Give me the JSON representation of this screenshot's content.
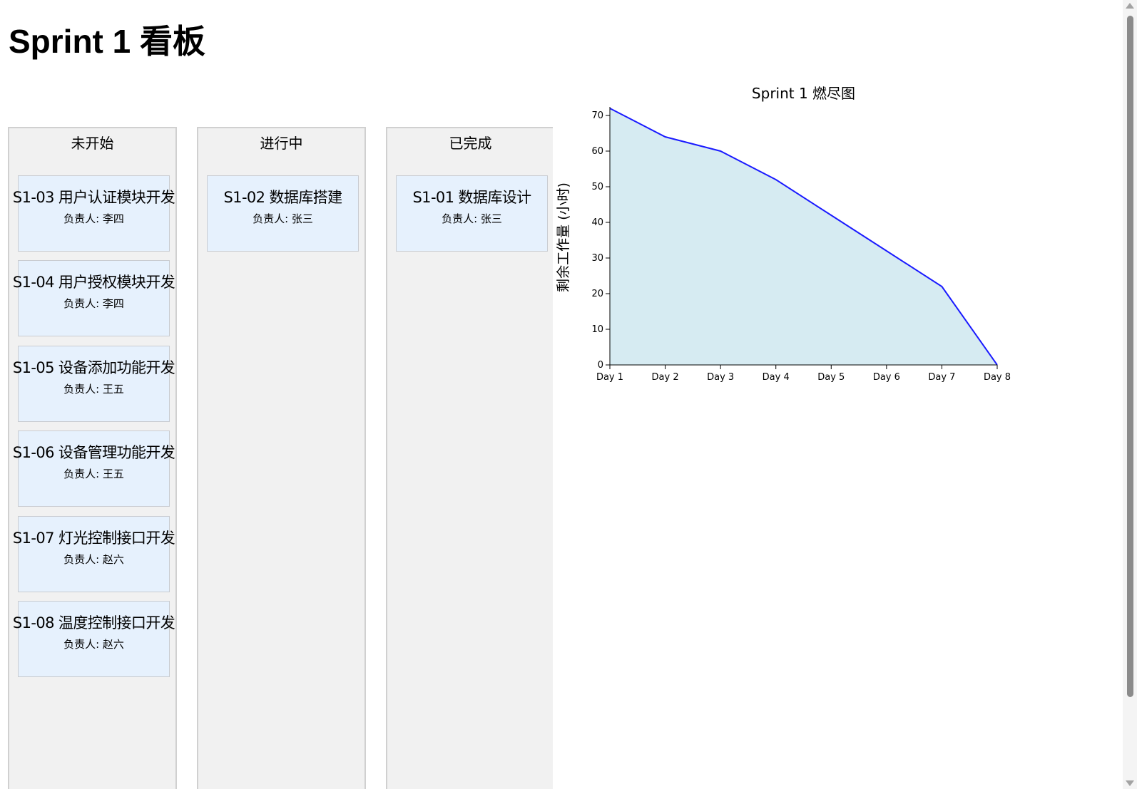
{
  "page": {
    "title": "Sprint 1 看板"
  },
  "board": {
    "columns": [
      {
        "title": "未开始",
        "cards": [
          {
            "title": "S1-03 用户认证模块开发",
            "owner": "负责人: 李四"
          },
          {
            "title": "S1-04 用户授权模块开发",
            "owner": "负责人: 李四"
          },
          {
            "title": "S1-05 设备添加功能开发",
            "owner": "负责人: 王五"
          },
          {
            "title": "S1-06 设备管理功能开发",
            "owner": "负责人: 王五"
          },
          {
            "title": "S1-07 灯光控制接口开发",
            "owner": "负责人: 赵六"
          },
          {
            "title": "S1-08 温度控制接口开发",
            "owner": "负责人: 赵六"
          }
        ]
      },
      {
        "title": "进行中",
        "cards": [
          {
            "title": "S1-02 数据库搭建",
            "owner": "负责人: 张三"
          }
        ]
      },
      {
        "title": "已完成",
        "cards": [
          {
            "title": "S1-01 数据库设计",
            "owner": "负责人: 张三"
          }
        ]
      }
    ]
  },
  "chart_data": {
    "type": "area",
    "title": "Sprint 1 燃尽图",
    "xlabel": "",
    "ylabel": "剩余工作量 (小时)",
    "categories": [
      "Day 1",
      "Day 2",
      "Day 3",
      "Day 4",
      "Day 5",
      "Day 6",
      "Day 7",
      "Day 8"
    ],
    "values": [
      72,
      64,
      60,
      52,
      42,
      32,
      22,
      0
    ],
    "ylim": [
      0,
      72
    ],
    "yticks": [
      0,
      10,
      20,
      30,
      40,
      50,
      60,
      70
    ],
    "grid": false,
    "colors": {
      "line": "#1a1aff",
      "fill": "#d6ebf2"
    }
  },
  "scrollbar": {
    "up_icon": "scroll-up-arrow-icon",
    "down_icon": "scroll-down-arrow-icon"
  }
}
